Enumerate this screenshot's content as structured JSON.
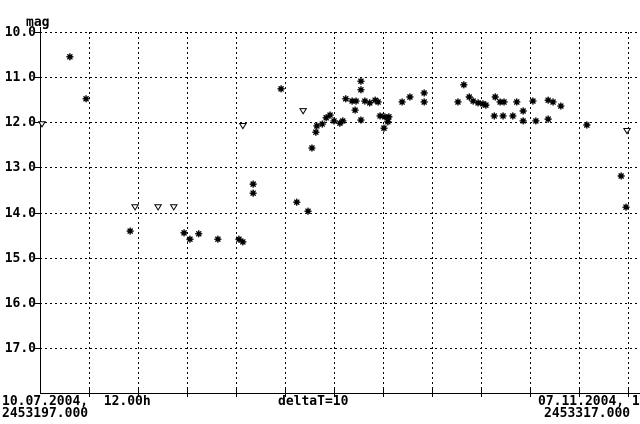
{
  "window": {
    "background": "#ffffff",
    "foreground": "#000000"
  },
  "axis_labels": {
    "y_unit": "mag",
    "y_tick_labels": [
      "10.0",
      "11.0",
      "12.0",
      "13.0",
      "14.0",
      "15.0",
      "16.0",
      "17.0"
    ],
    "x_left_line1": "10.07.2004,  12.00h",
    "x_left_line2": "2453197.000",
    "x_center": "deltaT=10",
    "x_right_line1": "07.11.2004, 1",
    "x_right_line2": "2453317.000"
  },
  "chart_data": {
    "type": "scatter",
    "title": "",
    "ylabel": "mag",
    "xlabel": "",
    "y_axis_inverted": true,
    "y_ticks": [
      10.0,
      11.0,
      12.0,
      13.0,
      14.0,
      15.0,
      16.0,
      17.0
    ],
    "ylim_displayed": [
      10.0,
      17.0
    ],
    "x_range_days": [
      0,
      120
    ],
    "x_grid_interval_days": 10,
    "x_start_date_label": "10.07.2004,  12.00h",
    "x_start_julian_date": "2453197.000",
    "x_end_date_label": "07.11.2004, 1",
    "x_end_julian_date": "2453317.000",
    "delta_t_label": "deltaT=10",
    "grid": true,
    "legend": false,
    "series": [
      {
        "name": "star-markers",
        "marker": "filled-star",
        "points_format": [
          "days_since_start",
          "magnitude"
        ],
        "points": [
          [
            6.1,
            10.55
          ],
          [
            9.4,
            11.48
          ],
          [
            18.4,
            14.41
          ],
          [
            29.4,
            14.45
          ],
          [
            30.6,
            14.59
          ],
          [
            32.4,
            14.47
          ],
          [
            36.3,
            14.59
          ],
          [
            40.6,
            14.59
          ],
          [
            41.4,
            14.65
          ],
          [
            43.5,
            13.37
          ],
          [
            43.5,
            13.57
          ],
          [
            49.2,
            11.26
          ],
          [
            52.4,
            13.77
          ],
          [
            54.7,
            13.97
          ],
          [
            55.5,
            12.57
          ],
          [
            56.3,
            12.22
          ],
          [
            56.5,
            12.08
          ],
          [
            57.6,
            12.04
          ],
          [
            58.4,
            11.9
          ],
          [
            59.2,
            11.84
          ],
          [
            60.0,
            11.97
          ],
          [
            61.2,
            12.02
          ],
          [
            61.8,
            11.97
          ],
          [
            62.4,
            11.48
          ],
          [
            63.7,
            11.53
          ],
          [
            64.5,
            11.53
          ],
          [
            64.3,
            11.73
          ],
          [
            65.5,
            11.09
          ],
          [
            65.5,
            11.28
          ],
          [
            65.5,
            11.95
          ],
          [
            66.3,
            11.53
          ],
          [
            67.3,
            11.57
          ],
          [
            68.4,
            11.51
          ],
          [
            69.0,
            11.55
          ],
          [
            69.4,
            11.86
          ],
          [
            70.4,
            11.88
          ],
          [
            71.2,
            11.88
          ],
          [
            71.0,
            11.99
          ],
          [
            70.2,
            12.13
          ],
          [
            73.9,
            11.55
          ],
          [
            75.5,
            11.44
          ],
          [
            78.4,
            11.35
          ],
          [
            78.4,
            11.55
          ],
          [
            85.3,
            11.55
          ],
          [
            86.5,
            11.17
          ],
          [
            87.6,
            11.44
          ],
          [
            88.4,
            11.53
          ],
          [
            89.4,
            11.57
          ],
          [
            90.4,
            11.59
          ],
          [
            91.0,
            11.62
          ],
          [
            92.9,
            11.44
          ],
          [
            93.9,
            11.55
          ],
          [
            94.7,
            11.55
          ],
          [
            92.7,
            11.86
          ],
          [
            94.5,
            11.86
          ],
          [
            96.5,
            11.86
          ],
          [
            97.3,
            11.55
          ],
          [
            98.6,
            11.75
          ],
          [
            98.6,
            11.97
          ],
          [
            100.6,
            11.53
          ],
          [
            101.2,
            11.97
          ],
          [
            103.7,
            11.51
          ],
          [
            104.7,
            11.55
          ],
          [
            103.7,
            11.93
          ],
          [
            106.3,
            11.64
          ],
          [
            111.6,
            12.06
          ],
          [
            118.6,
            13.19
          ],
          [
            119.6,
            13.88
          ]
        ]
      },
      {
        "name": "triangle-markers",
        "marker": "open-triangle-down",
        "points_format": [
          "days_since_start",
          "magnitude"
        ],
        "points": [
          [
            0.4,
            12.04
          ],
          [
            19.4,
            13.88
          ],
          [
            24.1,
            13.88
          ],
          [
            27.3,
            13.88
          ],
          [
            41.4,
            12.08
          ],
          [
            53.7,
            11.75
          ],
          [
            119.8,
            12.19
          ]
        ]
      }
    ]
  }
}
